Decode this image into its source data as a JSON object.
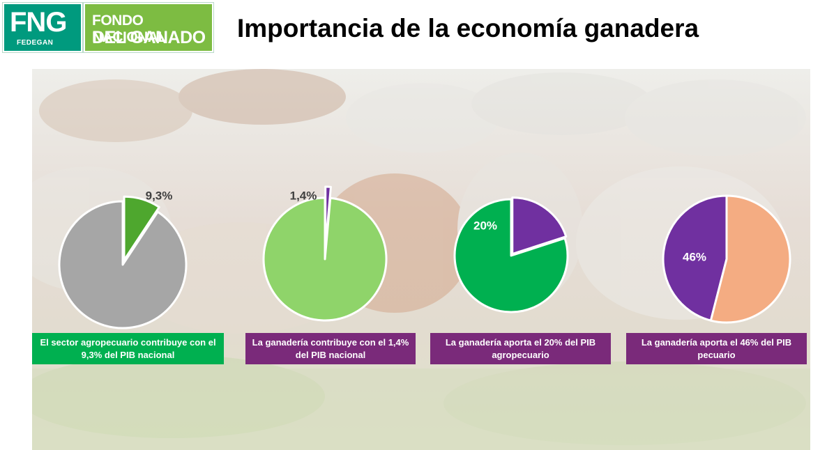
{
  "header": {
    "logo_fng": "FNG",
    "logo_fedegan": "FEDEGAN",
    "logo_line1": "FONDO NACIONAL",
    "logo_line2": "DEL GANADO",
    "title": "Importancia de la economía ganadera"
  },
  "colors": {
    "grey": "#a6a6a6",
    "dark_green": "#4ea72e",
    "light_green": "#8fd46a",
    "bright_green": "#00b050",
    "purple": "#7030a0",
    "salmon": "#f4ac82",
    "caption_green": "#00b050",
    "caption_purple": "#7a2a7a"
  },
  "chart_data": [
    {
      "type": "pie",
      "slices": [
        {
          "value": 9.3,
          "color": "#4ea72e",
          "label": "9,3%",
          "exploded": true
        },
        {
          "value": 90.7,
          "color": "#a6a6a6",
          "label": ""
        }
      ],
      "caption": "El sector agropecuario contribuye con el 9,3% del PIB nacional",
      "caption_color": "#00b050"
    },
    {
      "type": "pie",
      "slices": [
        {
          "value": 1.4,
          "color": "#7030a0",
          "label": "1,4%",
          "exploded": true
        },
        {
          "value": 98.6,
          "color": "#8fd46a",
          "label": ""
        }
      ],
      "caption": "La ganadería contribuye con el 1,4% del PIB nacional",
      "caption_color": "#7a2a7a"
    },
    {
      "type": "pie",
      "slices": [
        {
          "value": 20,
          "color": "#7030a0",
          "label": "20%",
          "exploded": true
        },
        {
          "value": 80,
          "color": "#00b050",
          "label": ""
        }
      ],
      "caption": "La ganadería aporta el 20% del PIB agropecuario",
      "caption_color": "#7a2a7a"
    },
    {
      "type": "pie",
      "slices": [
        {
          "value": 46,
          "color": "#7030a0",
          "label": "46%",
          "exploded": false
        },
        {
          "value": 54,
          "color": "#f4ac82",
          "label": ""
        }
      ],
      "caption": "La ganadería aporta el 46% del PIB pecuario",
      "caption_color": "#7a2a7a"
    }
  ]
}
